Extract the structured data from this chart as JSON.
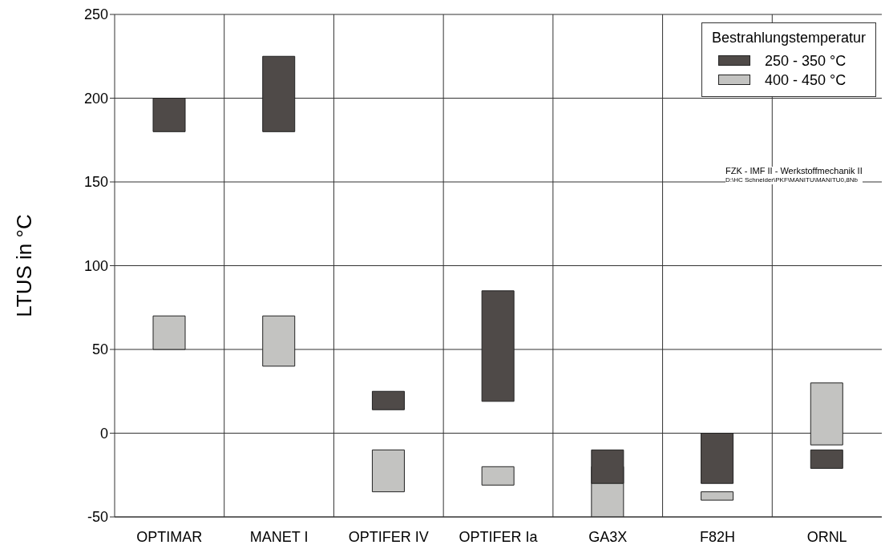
{
  "chart_data": {
    "type": "bar",
    "ylabel": "LTUS in °C",
    "legend_title": "Bestrahlungstemperatur",
    "legend": "top right",
    "grid": true,
    "categories": [
      "OPTIMAR",
      "MANET I",
      "OPTIFER IV",
      "OPTIFER Ia",
      "GA3X",
      "F82H",
      "ORNL"
    ],
    "series": [
      {
        "name": "250 - 350 °C",
        "color": "#4f4a48",
        "base": [
          180,
          180,
          14,
          19,
          -30,
          -30,
          -21
        ],
        "values": [
          20,
          45,
          11,
          66,
          20,
          30,
          11
        ]
      },
      {
        "name": "400 - 450 °C",
        "color": "#c3c3c1",
        "base": [
          50,
          40,
          -35,
          -31,
          -50,
          -40,
          -7
        ],
        "values": [
          20,
          30,
          25,
          11,
          30,
          5,
          37
        ]
      }
    ],
    "ylim": [
      -50,
      250
    ],
    "yticks": [
      -50,
      0,
      50,
      100,
      150,
      200,
      250
    ],
    "annotations": [
      "FZK - IMF II - Werkstoffmechanik II",
      "D:\\HC Schneider\\PKF\\MANITU\\MANITU0,8Nb"
    ]
  }
}
